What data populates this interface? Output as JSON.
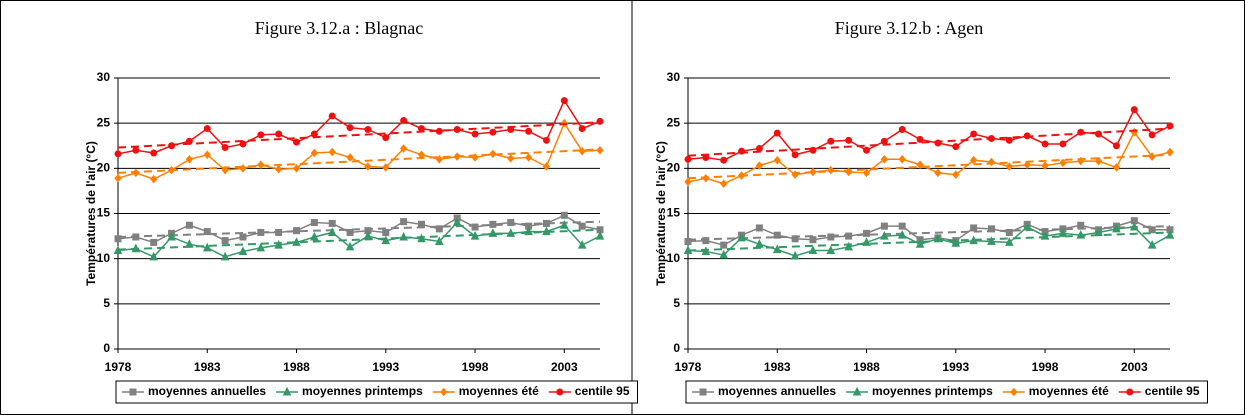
{
  "chart_data": [
    {
      "type": "line",
      "title": "Figure 3.12.a : Blagnac",
      "ylabel": "Températures de l'air (°C)",
      "x": [
        1978,
        1979,
        1980,
        1981,
        1982,
        1983,
        1984,
        1985,
        1986,
        1987,
        1988,
        1989,
        1990,
        1991,
        1992,
        1993,
        1994,
        1995,
        1996,
        1997,
        1998,
        1999,
        2000,
        2001,
        2002,
        2003,
        2004,
        2005
      ],
      "xlim": [
        1978,
        2005
      ],
      "xticks": [
        1978,
        1983,
        1988,
        1993,
        1998,
        2003
      ],
      "ylim": [
        0,
        30
      ],
      "yticks": [
        0,
        5,
        10,
        15,
        20,
        25,
        30
      ],
      "grid": true,
      "series": [
        {
          "name": "moyennes annuelles",
          "color": "#808080",
          "marker": "square",
          "trend": [
            12.4,
            14.1
          ],
          "values": [
            12.2,
            12.4,
            11.8,
            12.8,
            13.7,
            13.0,
            12.0,
            12.4,
            12.9,
            12.9,
            13.1,
            14.0,
            13.9,
            12.9,
            13.1,
            12.9,
            14.1,
            13.8,
            13.3,
            14.5,
            13.5,
            13.8,
            14.0,
            13.6,
            13.9,
            14.8,
            13.6,
            13.2
          ]
        },
        {
          "name": "moyennes printemps",
          "color": "#339966",
          "marker": "triangle",
          "trend": [
            11.0,
            13.2
          ],
          "values": [
            10.9,
            11.1,
            10.2,
            12.4,
            11.6,
            11.2,
            10.2,
            10.8,
            11.2,
            11.5,
            11.8,
            12.4,
            12.9,
            11.3,
            12.5,
            12.0,
            12.4,
            12.2,
            11.9,
            14.0,
            12.5,
            12.8,
            12.8,
            13.0,
            13.0,
            13.7,
            11.5,
            12.5
          ]
        },
        {
          "name": "moyennes été",
          "color": "#ff7f00",
          "marker": "diamond",
          "trend": [
            19.5,
            22.1
          ],
          "values": [
            18.9,
            19.5,
            18.8,
            19.8,
            21.0,
            21.5,
            19.8,
            20.0,
            20.4,
            19.9,
            20.0,
            21.7,
            21.8,
            21.2,
            20.2,
            20.1,
            22.2,
            21.5,
            21.0,
            21.3,
            21.2,
            21.6,
            21.1,
            21.2,
            20.2,
            25.0,
            21.9,
            22.0
          ]
        },
        {
          "name": "centile 95",
          "color": "#ee1111",
          "marker": "circle",
          "trend": [
            22.3,
            25.1
          ],
          "values": [
            21.6,
            22.0,
            21.7,
            22.5,
            23.0,
            24.4,
            22.3,
            22.7,
            23.7,
            23.8,
            22.9,
            23.8,
            25.8,
            24.5,
            24.3,
            23.4,
            25.3,
            24.4,
            24.1,
            24.3,
            23.8,
            24.0,
            24.3,
            24.1,
            23.1,
            27.5,
            24.4,
            25.2
          ]
        }
      ]
    },
    {
      "type": "line",
      "title": "Figure 3.12.b : Agen",
      "ylabel": "Températures de l'air (°C)",
      "x": [
        1978,
        1979,
        1980,
        1981,
        1982,
        1983,
        1984,
        1985,
        1986,
        1987,
        1988,
        1989,
        1990,
        1991,
        1992,
        1993,
        1994,
        1995,
        1996,
        1997,
        1998,
        1999,
        2000,
        2001,
        2002,
        2003,
        2004,
        2005
      ],
      "xlim": [
        1978,
        2005
      ],
      "xticks": [
        1978,
        1983,
        1988,
        1993,
        1998,
        2003
      ],
      "ylim": [
        0,
        30
      ],
      "yticks": [
        0,
        5,
        10,
        15,
        20,
        25,
        30
      ],
      "grid": true,
      "series": [
        {
          "name": "moyennes annuelles",
          "color": "#808080",
          "marker": "square",
          "trend": [
            12.1,
            13.6
          ],
          "values": [
            11.9,
            12.0,
            11.5,
            12.6,
            13.4,
            12.6,
            12.2,
            12.1,
            12.4,
            12.5,
            12.8,
            13.6,
            13.6,
            12.1,
            12.3,
            12.0,
            13.4,
            13.3,
            12.9,
            13.8,
            13.0,
            13.3,
            13.7,
            13.2,
            13.6,
            14.2,
            13.2,
            13.2
          ]
        },
        {
          "name": "moyennes printemps",
          "color": "#339966",
          "marker": "triangle",
          "trend": [
            10.9,
            12.9
          ],
          "values": [
            10.9,
            10.8,
            10.4,
            12.3,
            11.6,
            11.0,
            10.3,
            10.9,
            10.9,
            11.3,
            11.8,
            12.5,
            12.6,
            11.6,
            12.2,
            11.7,
            12.0,
            11.9,
            11.8,
            13.5,
            12.5,
            12.8,
            12.6,
            12.9,
            13.3,
            13.5,
            11.5,
            12.6
          ]
        },
        {
          "name": "moyennes été",
          "color": "#ff7f00",
          "marker": "diamond",
          "trend": [
            18.9,
            21.5
          ],
          "values": [
            18.5,
            18.9,
            18.3,
            19.2,
            20.3,
            20.9,
            19.3,
            19.6,
            19.8,
            19.6,
            19.5,
            21.0,
            21.0,
            20.4,
            19.5,
            19.3,
            20.9,
            20.7,
            20.2,
            20.4,
            20.3,
            20.6,
            20.8,
            20.8,
            20.1,
            24.0,
            21.3,
            21.8
          ]
        },
        {
          "name": "centile 95",
          "color": "#ee1111",
          "marker": "circle",
          "trend": [
            21.4,
            24.4
          ],
          "values": [
            21.0,
            21.2,
            20.9,
            21.9,
            22.2,
            23.9,
            21.5,
            22.0,
            23.0,
            23.1,
            22.0,
            23.0,
            24.3,
            23.2,
            22.8,
            22.4,
            23.8,
            23.3,
            23.1,
            23.6,
            22.7,
            22.7,
            24.0,
            23.8,
            22.5,
            26.5,
            23.7,
            24.7
          ]
        }
      ]
    }
  ]
}
